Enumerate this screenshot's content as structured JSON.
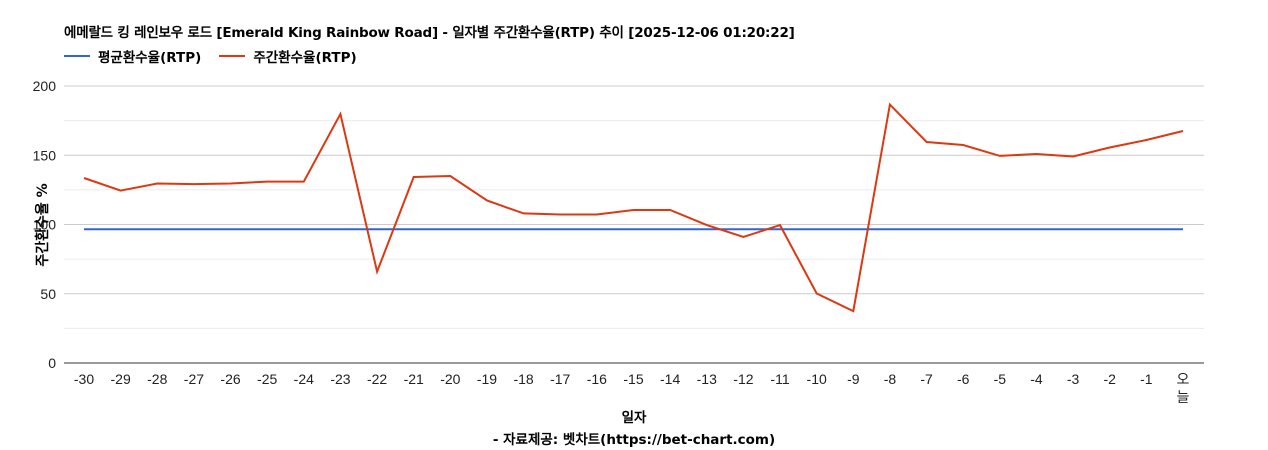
{
  "chart": {
    "title": "에메랄드 킹 레인보우 로드 [Emerald King Rainbow Road] - 일자별 주간환수율(RTP) 추이 [2025-12-06 01:20:22]",
    "legend": [
      {
        "label": "평균환수율(RTP)",
        "color": "#3366cc"
      },
      {
        "label": "주간환수율(RTP)",
        "color": "#dc3912"
      }
    ],
    "xlabel": "일자",
    "ylabel": "주간환수율 %",
    "credit": "- 자료제공: 벳차트(https://bet-chart.com)"
  },
  "chart_data": {
    "type": "line",
    "title": "에메랄드 킹 레인보우 로드 [Emerald King Rainbow Road] - 일자별 주간환수율(RTP) 추이 [2025-12-06 01:20:22]",
    "xlabel": "일자",
    "ylabel": "주간환수율 %",
    "ylim": [
      0,
      200
    ],
    "yticks": [
      0,
      50,
      100,
      150,
      200
    ],
    "minor_gridlines": [
      25,
      75,
      125,
      175
    ],
    "grid": true,
    "legend_position": "top-left",
    "categories": [
      "-30",
      "-29",
      "-28",
      "-27",
      "-26",
      "-25",
      "-24",
      "-23",
      "-22",
      "-21",
      "-20",
      "-19",
      "-18",
      "-17",
      "-16",
      "-15",
      "-14",
      "-13",
      "-12",
      "-11",
      "-10",
      "-9",
      "-8",
      "-7",
      "-6",
      "-5",
      "-4",
      "-3",
      "-2",
      "-1",
      "오늘"
    ],
    "series": [
      {
        "name": "평균환수율(RTP)",
        "color": "#3366cc",
        "values": [
          96.6,
          96.6,
          96.6,
          96.6,
          96.6,
          96.6,
          96.6,
          96.6,
          96.6,
          96.6,
          96.6,
          96.6,
          96.6,
          96.6,
          96.6,
          96.6,
          96.6,
          96.6,
          96.6,
          96.6,
          96.6,
          96.6,
          96.6,
          96.6,
          96.6,
          96.6,
          96.6,
          96.6,
          96.6,
          96.6,
          96.6
        ]
      },
      {
        "name": "주간환수율(RTP)",
        "color": "#dc3912",
        "values": [
          133.6,
          124.5,
          129.6,
          129.2,
          129.6,
          131.0,
          131.0,
          179.8,
          66.0,
          134.3,
          135.0,
          117.3,
          108.0,
          107.2,
          107.2,
          110.5,
          110.5,
          99.6,
          91.0,
          99.6,
          50.2,
          37.5,
          186.6,
          159.6,
          157.4,
          149.5,
          150.9,
          149.1,
          155.6,
          161.0,
          167.5
        ]
      }
    ]
  }
}
